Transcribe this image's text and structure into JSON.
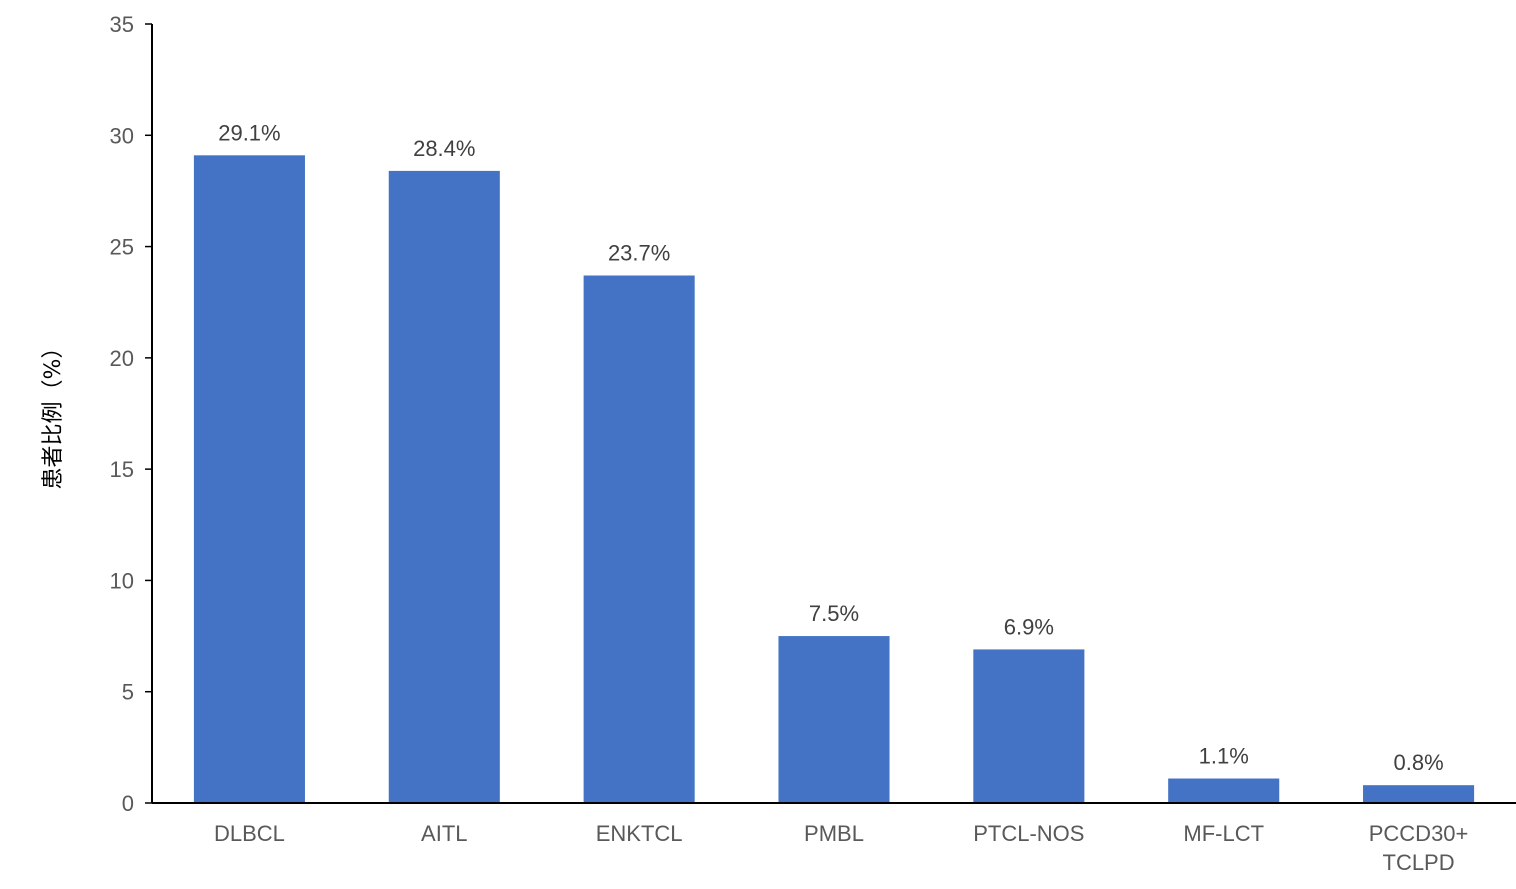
{
  "chart_data": {
    "type": "bar",
    "title": "",
    "xlabel": "",
    "ylabel": "患者比例（%）",
    "categories": [
      [
        "DLBCL"
      ],
      [
        "AITL"
      ],
      [
        "ENKTCL"
      ],
      [
        "PMBL"
      ],
      [
        "PTCL-NOS"
      ],
      [
        "MF-LCT"
      ],
      [
        "PCCD30+",
        "TCLPD"
      ]
    ],
    "values": [
      29.1,
      28.4,
      23.7,
      7.5,
      6.9,
      1.1,
      0.8
    ],
    "data_labels": [
      "29.1%",
      "28.4%",
      "23.7%",
      "7.5%",
      "6.9%",
      "1.1%",
      "0.8%"
    ],
    "ylim": [
      0,
      35
    ],
    "yticks": [
      0,
      5,
      10,
      15,
      20,
      25,
      30,
      35
    ],
    "grid": false,
    "legend": "none",
    "bar_color": "#4472C4"
  }
}
